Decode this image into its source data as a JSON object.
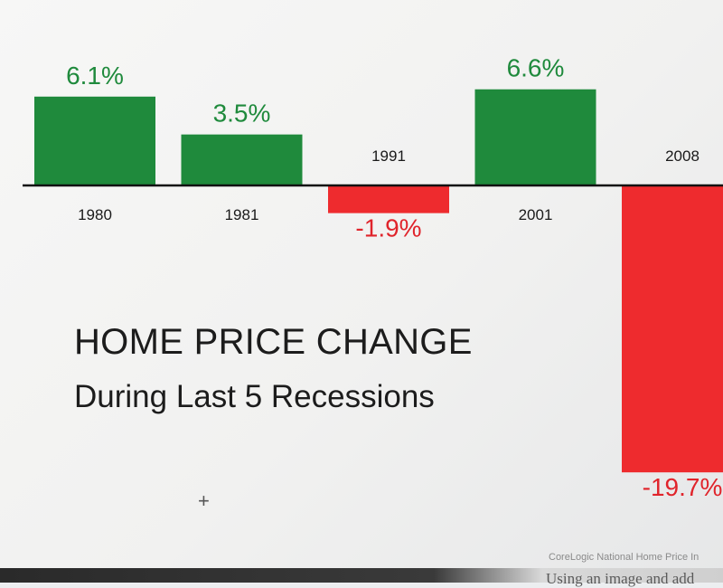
{
  "chart_data": {
    "type": "bar",
    "title": "HOME PRICE CHANGE",
    "subtitle": "During Last 5 Recessions",
    "categories": [
      "1980",
      "1981",
      "1991",
      "2001",
      "2008"
    ],
    "values": [
      6.1,
      3.5,
      -1.9,
      6.6,
      -19.7
    ],
    "data_labels": [
      "6.1%",
      "3.5%",
      "-1.9%",
      "6.6%",
      "-19.7%"
    ],
    "unit": "%",
    "grid": false,
    "colors": {
      "positive": "#1f8a3c",
      "negative": "#ee2b2e",
      "positive_label": "#1f8a3c",
      "negative_label": "#e0242b",
      "axis": "#111111"
    }
  },
  "source": "CoreLogic National Home Price In",
  "cropped_caption": "Using an image and add"
}
